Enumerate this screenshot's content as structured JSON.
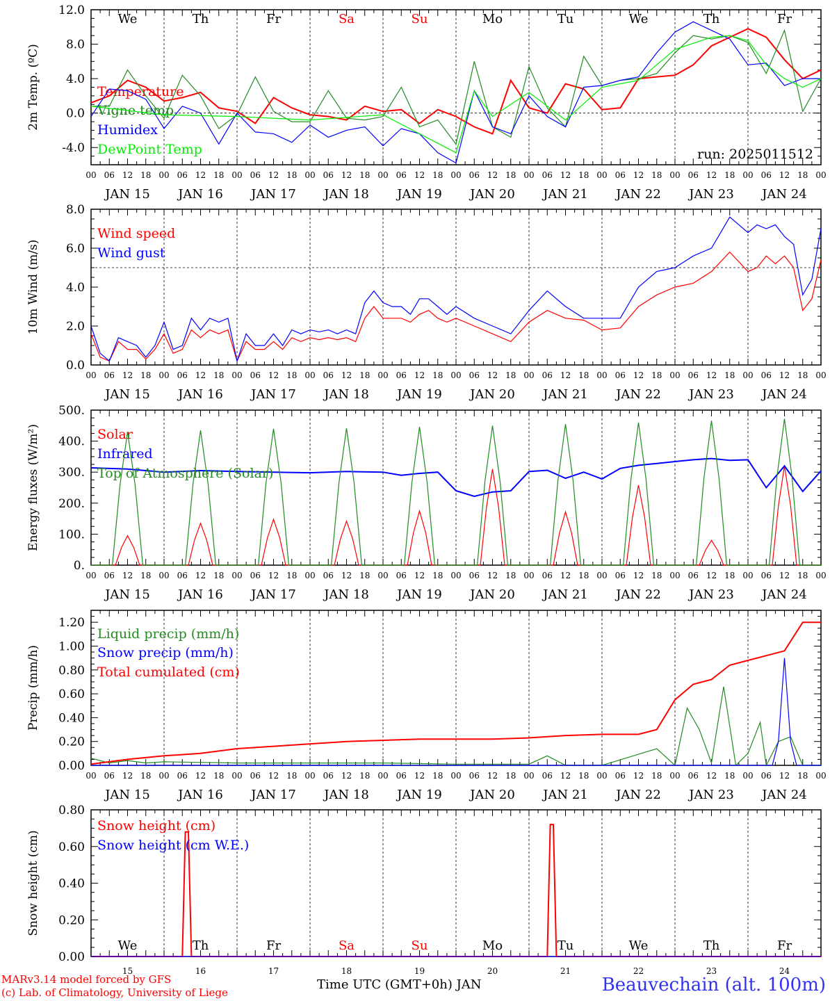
{
  "chart_data": [
    {
      "type": "line",
      "ylabel": "2m Temp. (ºC)",
      "ylim": [
        -6,
        12
      ],
      "yticks": [
        -4.0,
        0.0,
        4.0,
        8.0,
        12.0
      ],
      "ytick_labels": [
        "-4.0",
        "0.0",
        "4.0",
        "8.0",
        "12.0"
      ],
      "reference_line": 0,
      "run_label": "run: 2025011512",
      "series": [
        {
          "name": "Temperature",
          "color": "#ff0000",
          "x": [
            0,
            6,
            12,
            18,
            24,
            30,
            36,
            42,
            48,
            54,
            60,
            66,
            72,
            78,
            84,
            90,
            96,
            102,
            108,
            114,
            120,
            126,
            132,
            138,
            144,
            150,
            156,
            162,
            168,
            174,
            180,
            186,
            192,
            198,
            204,
            210,
            216,
            222,
            228,
            234,
            240
          ],
          "y": [
            1.2,
            2.0,
            3.8,
            3.0,
            1.4,
            1.8,
            2.4,
            0.6,
            0.2,
            -1.2,
            1.8,
            0.6,
            -0.2,
            -0.4,
            -0.8,
            0.8,
            0.2,
            0.4,
            -1.2,
            0.4,
            -0.4,
            -1.6,
            -2.4,
            3.8,
            0.6,
            0.0,
            3.4,
            2.8,
            0.4,
            0.6,
            4.0,
            4.2,
            4.4,
            5.6,
            7.8,
            8.8,
            9.8,
            8.8,
            6.2,
            4.0,
            5.0
          ]
        },
        {
          "name": "Vigne temp",
          "color": "#228b22",
          "x": [
            0,
            6,
            12,
            18,
            24,
            30,
            36,
            42,
            48,
            54,
            60,
            66,
            72,
            78,
            84,
            90,
            96,
            102,
            108,
            114,
            120,
            126,
            132,
            138,
            144,
            150,
            156,
            162,
            168,
            174,
            180,
            186,
            192,
            198,
            204,
            210,
            216,
            222,
            228,
            234,
            240
          ],
          "y": [
            0.8,
            0.8,
            5.0,
            2.0,
            -0.6,
            4.4,
            2.0,
            -1.8,
            -0.2,
            4.2,
            0.2,
            -1.0,
            -1.0,
            2.6,
            -0.6,
            -0.8,
            -0.4,
            3.0,
            -1.6,
            -0.8,
            -3.6,
            6.0,
            -1.6,
            -2.8,
            5.4,
            0.6,
            -1.6,
            6.6,
            3.2,
            3.8,
            4.0,
            4.6,
            7.0,
            9.0,
            8.6,
            9.0,
            8.2,
            4.6,
            9.6,
            0.2,
            4.0
          ]
        },
        {
          "name": "Humidex",
          "color": "#0000ff",
          "x": [
            0,
            6,
            12,
            18,
            24,
            30,
            36,
            42,
            48,
            54,
            60,
            66,
            72,
            78,
            84,
            90,
            96,
            102,
            108,
            114,
            120,
            126,
            132,
            138,
            144,
            150,
            156,
            162,
            168,
            174,
            180,
            186,
            192,
            198,
            204,
            210,
            216,
            222,
            228,
            234,
            240
          ],
          "y": [
            -0.4,
            2.8,
            2.6,
            1.6,
            -1.8,
            0.8,
            0.0,
            -3.6,
            0.0,
            -2.2,
            -2.4,
            -3.4,
            -1.4,
            -2.8,
            -2.0,
            -1.6,
            -3.8,
            -1.8,
            -2.4,
            -4.6,
            -5.8,
            2.6,
            -1.6,
            -2.4,
            2.0,
            -0.4,
            -1.6,
            3.0,
            3.2,
            3.8,
            4.2,
            7.0,
            9.4,
            10.6,
            9.6,
            8.6,
            5.6,
            5.8,
            3.2,
            4.0,
            4.0
          ]
        },
        {
          "name": "DewPoint Temp",
          "color": "#00ee00",
          "x": [
            0,
            24,
            48,
            72,
            96,
            120,
            126,
            132,
            144,
            156,
            168,
            180,
            192,
            204,
            210,
            216,
            222,
            228,
            234,
            240
          ],
          "y": [
            0.8,
            -0.2,
            -0.4,
            -0.8,
            -0.2,
            -4.6,
            2.6,
            -0.4,
            2.4,
            -0.8,
            3.0,
            3.8,
            7.4,
            8.8,
            9.0,
            8.4,
            5.6,
            4.0,
            3.0,
            4.0
          ]
        }
      ]
    },
    {
      "type": "line",
      "ylabel": "10m Wind (m/s)",
      "ylim": [
        0,
        8
      ],
      "yticks": [
        0.0,
        2.0,
        4.0,
        6.0,
        8.0
      ],
      "ytick_labels": [
        "0.0",
        "2.0",
        "4.0",
        "6.0",
        "8.0"
      ],
      "reference_line": 5,
      "series": [
        {
          "name": "Wind speed",
          "color": "#ff0000",
          "x": [
            0,
            3,
            6,
            9,
            12,
            15,
            18,
            21,
            24,
            27,
            30,
            33,
            36,
            39,
            42,
            45,
            48,
            51,
            54,
            57,
            60,
            63,
            66,
            69,
            72,
            75,
            78,
            81,
            84,
            87,
            90,
            93,
            96,
            99,
            102,
            105,
            108,
            111,
            114,
            117,
            120,
            126,
            132,
            138,
            144,
            150,
            156,
            162,
            168,
            174,
            180,
            186,
            192,
            198,
            204,
            210,
            216,
            219,
            222,
            225,
            228,
            231,
            234,
            237,
            240
          ],
          "y": [
            1.6,
            0.4,
            0.2,
            1.2,
            0.8,
            0.8,
            0.3,
            0.8,
            1.6,
            0.6,
            0.8,
            1.8,
            1.4,
            1.8,
            1.6,
            1.8,
            0.2,
            1.2,
            0.8,
            0.8,
            1.2,
            0.8,
            1.4,
            1.2,
            1.4,
            1.3,
            1.4,
            1.3,
            1.4,
            1.2,
            2.4,
            3.0,
            2.4,
            2.4,
            2.4,
            2.2,
            2.6,
            2.8,
            2.4,
            2.2,
            2.4,
            2.0,
            1.6,
            1.2,
            2.2,
            2.8,
            2.4,
            2.3,
            1.8,
            1.9,
            3.0,
            3.6,
            4.0,
            4.2,
            4.8,
            5.8,
            4.8,
            5.0,
            5.6,
            5.2,
            5.6,
            5.0,
            2.8,
            3.4,
            5.4
          ]
        },
        {
          "name": "Wind gust",
          "color": "#0000ff",
          "x": [
            0,
            3,
            6,
            9,
            12,
            15,
            18,
            21,
            24,
            27,
            30,
            33,
            36,
            39,
            42,
            45,
            48,
            51,
            54,
            57,
            60,
            63,
            66,
            69,
            72,
            75,
            78,
            81,
            84,
            87,
            90,
            93,
            96,
            99,
            102,
            105,
            108,
            111,
            114,
            117,
            120,
            126,
            132,
            138,
            144,
            150,
            156,
            162,
            168,
            174,
            180,
            186,
            192,
            198,
            204,
            210,
            216,
            219,
            222,
            225,
            228,
            231,
            234,
            237,
            240
          ],
          "y": [
            2.0,
            0.6,
            0.2,
            1.4,
            1.2,
            1.0,
            0.4,
            1.0,
            2.2,
            0.8,
            1.0,
            2.4,
            1.8,
            2.4,
            2.2,
            2.4,
            0.2,
            1.6,
            1.0,
            1.0,
            1.6,
            1.0,
            1.8,
            1.6,
            1.8,
            1.7,
            1.8,
            1.6,
            1.8,
            1.6,
            3.2,
            3.8,
            3.2,
            3.0,
            3.0,
            2.6,
            3.4,
            3.4,
            3.0,
            2.6,
            3.0,
            2.4,
            2.0,
            1.6,
            2.8,
            3.8,
            3.0,
            2.4,
            2.4,
            2.4,
            4.0,
            4.8,
            5.0,
            5.6,
            6.0,
            7.6,
            6.8,
            7.2,
            7.0,
            7.2,
            6.6,
            6.2,
            3.6,
            4.4,
            7.0
          ]
        }
      ]
    },
    {
      "type": "line",
      "ylabel": "Energy fluxes (W/m²)",
      "ylim": [
        0,
        500
      ],
      "yticks": [
        0,
        100,
        200,
        300,
        400,
        500
      ],
      "ytick_labels": [
        "0.",
        "100.",
        "200.",
        "300.",
        "400.",
        "500."
      ],
      "series": [
        {
          "name": "Solar",
          "color": "#ff0000",
          "peaks_hour_utc": 12,
          "daily_peak": [
            95,
            135,
            148,
            142,
            175,
            310,
            172,
            258,
            80,
            320
          ]
        },
        {
          "name": "Infrared",
          "color": "#0000ff",
          "x": [
            0,
            12,
            24,
            36,
            48,
            60,
            72,
            84,
            96,
            102,
            108,
            114,
            120,
            126,
            132,
            138,
            144,
            150,
            156,
            162,
            168,
            174,
            180,
            186,
            192,
            198,
            204,
            210,
            216,
            222,
            228,
            234,
            240
          ],
          "y": [
            314,
            310,
            300,
            305,
            302,
            300,
            298,
            302,
            300,
            290,
            296,
            300,
            240,
            222,
            236,
            240,
            302,
            306,
            280,
            300,
            278,
            312,
            322,
            328,
            334,
            340,
            344,
            338,
            340,
            250,
            320,
            238,
            304
          ]
        },
        {
          "name": "Top of Atmosphere (Solar)",
          "color": "#228b22",
          "peaks_hour_utc": 12,
          "daily_peak": [
            430,
            435,
            440,
            442,
            446,
            450,
            455,
            460,
            466,
            472
          ]
        }
      ]
    },
    {
      "type": "line",
      "ylabel": "Precip (mm/h)",
      "ylim": [
        0,
        1.3
      ],
      "yticks": [
        0.0,
        0.2,
        0.4,
        0.6,
        0.8,
        1.0,
        1.2
      ],
      "ytick_labels": [
        "0.00",
        "0.20",
        "0.40",
        "0.60",
        "0.80",
        "1.00",
        "1.20"
      ],
      "series": [
        {
          "name": "Liquid precip (mm/h)",
          "color": "#228b22",
          "x": [
            0,
            6,
            12,
            18,
            24,
            48,
            72,
            96,
            120,
            144,
            150,
            156,
            160,
            168,
            186,
            192,
            196,
            200,
            204,
            208,
            212,
            216,
            220,
            222,
            226,
            230,
            234,
            240
          ],
          "y": [
            0.06,
            0.02,
            0.04,
            0.02,
            0.03,
            0.02,
            0.02,
            0.02,
            0.01,
            0.01,
            0.08,
            0.0,
            0.0,
            0.0,
            0.14,
            0.0,
            0.48,
            0.3,
            0.02,
            0.66,
            0.0,
            0.1,
            0.36,
            0.0,
            0.2,
            0.24,
            0.0,
            0.0
          ]
        },
        {
          "name": "Snow precip (mm/h)",
          "color": "#0000ff",
          "x": [
            0,
            200,
            224,
            226,
            228,
            230,
            232,
            240
          ],
          "y": [
            0.0,
            0.0,
            0.0,
            0.2,
            0.9,
            0.2,
            0.0,
            0.0
          ]
        },
        {
          "name": "Total cumulated (cm)",
          "color": "#ff0000",
          "x": [
            0,
            12,
            24,
            36,
            48,
            60,
            72,
            84,
            96,
            108,
            120,
            132,
            144,
            156,
            168,
            180,
            186,
            192,
            198,
            204,
            210,
            216,
            222,
            228,
            234,
            240
          ],
          "y": [
            0.01,
            0.05,
            0.08,
            0.1,
            0.14,
            0.16,
            0.18,
            0.2,
            0.21,
            0.22,
            0.22,
            0.22,
            0.23,
            0.25,
            0.26,
            0.26,
            0.3,
            0.55,
            0.68,
            0.72,
            0.84,
            0.88,
            0.92,
            0.96,
            1.2,
            1.2
          ]
        }
      ]
    },
    {
      "type": "line",
      "ylabel": "Snow height (cm)",
      "ylim": [
        0,
        0.8
      ],
      "yticks": [
        0.0,
        0.2,
        0.4,
        0.6,
        0.8
      ],
      "ytick_labels": [
        "0.00",
        "0.20",
        "0.40",
        "0.60",
        "0.80"
      ],
      "series": [
        {
          "name": "Snow height (cm)",
          "color": "#ff0000",
          "x": [
            0,
            30,
            31,
            32,
            33,
            150,
            151,
            152,
            153,
            240
          ],
          "y": [
            0,
            0,
            0.68,
            0.68,
            0,
            0,
            0.72,
            0.72,
            0,
            0
          ]
        },
        {
          "name": "Snow height (cm W.E.)",
          "color": "#0000ff",
          "x": [
            0,
            240
          ],
          "y": [
            0,
            0
          ]
        }
      ]
    }
  ],
  "x_axis": {
    "hour_ticks": [
      "00",
      "06",
      "12",
      "18"
    ],
    "end_tick": "00",
    "date_labels": [
      "JAN 15",
      "JAN 16",
      "JAN 17",
      "JAN 18",
      "JAN 19",
      "JAN 20",
      "JAN 21",
      "JAN 22",
      "JAN 23",
      "JAN 24"
    ],
    "day_numbers": [
      "15",
      "16",
      "17",
      "18",
      "19",
      "20",
      "21",
      "22",
      "23",
      "24"
    ],
    "weekdays": [
      "We",
      "Th",
      "Fr",
      "Sa",
      "Su",
      "Mo",
      "Tu",
      "We",
      "Th",
      "Fr"
    ],
    "weekend_color": "#ff0000",
    "title": "Time UTC (GMT+0h) JAN"
  },
  "footer": {
    "model_line": "MARv3.14 model forced by GFS",
    "credit_line": "(c) Lab. of Climatology, University of Liege",
    "station": "Beauvechain (alt. 100m)"
  }
}
